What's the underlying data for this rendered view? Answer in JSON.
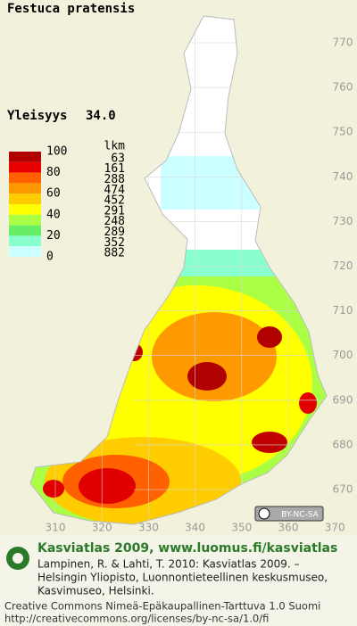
{
  "title": "Festuca pratensis",
  "frequency": {
    "label": "Yleisyys",
    "value": "34.0"
  },
  "legend": {
    "scale_labels": [
      100,
      80,
      60,
      40,
      20,
      0
    ],
    "count_header": "lkm",
    "counts": [
      63,
      161,
      288,
      474,
      452,
      291,
      248,
      289,
      352,
      882
    ]
  },
  "map": {
    "y_labels": [
      770,
      760,
      750,
      740,
      730,
      720,
      710,
      700,
      690,
      680,
      670
    ],
    "x_labels": [
      310,
      320,
      330,
      340,
      350,
      360,
      370
    ]
  },
  "badge": "BY-NC-SA",
  "footer": {
    "heading": "Kasviatlas 2009, www.luomus.fi/kasviatlas",
    "citation": [
      "Lampinen, R. & Lahti, T. 2010: Kasviatlas 2009. –",
      "Helsingin Yliopisto, Luonnontieteellinen keskusmuseo,",
      "Kasvimuseo, Helsinki."
    ],
    "license": [
      "Creative Commons Nimeä-Epäkaupallinen-Tarttuva 1.0 Suomi",
      "http://creativecommons.org/licenses/by-nc-sa/1.0/fi"
    ]
  }
}
